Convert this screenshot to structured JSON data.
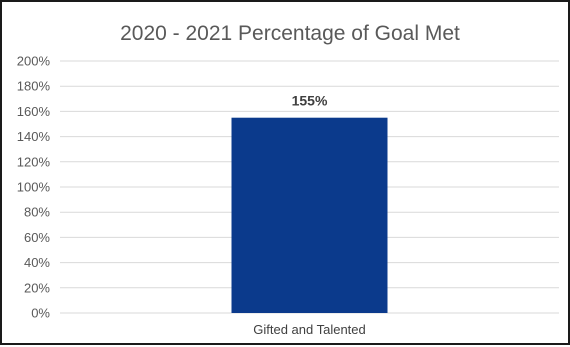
{
  "chart_data": {
    "type": "bar",
    "title": "2020 - 2021 Percentage of Goal Met",
    "categories": [
      "Gifted and Talented"
    ],
    "values": [
      155
    ],
    "data_labels": [
      "155%"
    ],
    "xlabel": "",
    "ylabel": "",
    "ylim": [
      0,
      200
    ],
    "y_ticks": [
      0,
      20,
      40,
      60,
      80,
      100,
      120,
      140,
      160,
      180,
      200
    ],
    "y_tick_labels": [
      "0%",
      "20%",
      "40%",
      "60%",
      "80%",
      "100%",
      "120%",
      "140%",
      "160%",
      "180%",
      "200%"
    ],
    "grid": true,
    "legend": "none",
    "colors": {
      "bar": "#0b3a8c",
      "gridline": "#d9d9d9",
      "text": "#595959"
    }
  }
}
